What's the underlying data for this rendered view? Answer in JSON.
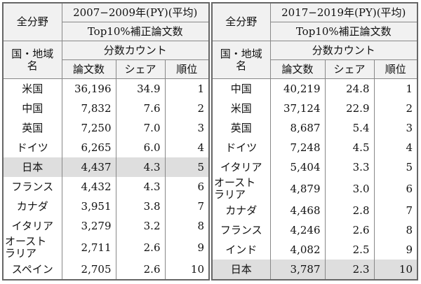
{
  "tables": [
    {
      "field_label": "全分野",
      "period": "2007−2009年(PY)(平均)",
      "metric": "Top10%補正論文数",
      "count_method": "分数カウント",
      "country_header": "国・地域\n名",
      "columns": [
        "論文数",
        "シェア",
        "順位"
      ],
      "rows": [
        {
          "country": "米国",
          "papers": "36,196",
          "share": "34.9",
          "rank": "1"
        },
        {
          "country": "中国",
          "papers": "7,832",
          "share": "7.6",
          "rank": "2"
        },
        {
          "country": "英国",
          "papers": "7,250",
          "share": "7.0",
          "rank": "3"
        },
        {
          "country": "ドイツ",
          "papers": "6,265",
          "share": "6.0",
          "rank": "4"
        },
        {
          "country": "日本",
          "papers": "4,437",
          "share": "4.3",
          "rank": "5",
          "highlight": true
        },
        {
          "country": "フランス",
          "papers": "4,432",
          "share": "4.3",
          "rank": "6"
        },
        {
          "country": "カナダ",
          "papers": "3,951",
          "share": "3.8",
          "rank": "7"
        },
        {
          "country": "イタリア",
          "papers": "3,279",
          "share": "3.2",
          "rank": "8"
        },
        {
          "country": "オースト\nラリア",
          "papers": "2,711",
          "share": "2.6",
          "rank": "9"
        },
        {
          "country": "スペイン",
          "papers": "2,705",
          "share": "2.6",
          "rank": "10"
        }
      ]
    },
    {
      "field_label": "全分野",
      "period": "2017−2019年(PY)(平均)",
      "metric": "Top10%補正論文数",
      "count_method": "分数カウント",
      "country_header": "国・地域\n名",
      "columns": [
        "論文数",
        "シェア",
        "順位"
      ],
      "rows": [
        {
          "country": "中国",
          "papers": "40,219",
          "share": "24.8",
          "rank": "1"
        },
        {
          "country": "米国",
          "papers": "37,124",
          "share": "22.9",
          "rank": "2"
        },
        {
          "country": "英国",
          "papers": "8,687",
          "share": "5.4",
          "rank": "3"
        },
        {
          "country": "ドイツ",
          "papers": "7,248",
          "share": "4.5",
          "rank": "4"
        },
        {
          "country": "イタリア",
          "papers": "5,404",
          "share": "3.3",
          "rank": "5"
        },
        {
          "country": "オースト\nラリア",
          "papers": "4,879",
          "share": "3.0",
          "rank": "6"
        },
        {
          "country": "カナダ",
          "papers": "4,468",
          "share": "2.8",
          "rank": "7"
        },
        {
          "country": "フランス",
          "papers": "4,246",
          "share": "2.6",
          "rank": "8"
        },
        {
          "country": "インド",
          "papers": "4,082",
          "share": "2.5",
          "rank": "9"
        },
        {
          "country": "日本",
          "papers": "3,787",
          "share": "2.3",
          "rank": "10",
          "highlight": true
        }
      ]
    }
  ],
  "colors": {
    "header_bg": "#f1f1f1",
    "highlight_bg": "#dedede",
    "border": "#888888"
  }
}
